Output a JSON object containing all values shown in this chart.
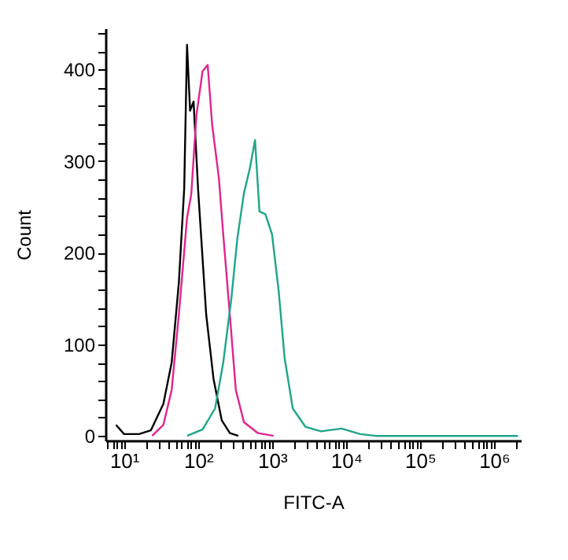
{
  "chart_data": {
    "type": "line",
    "xlabel": "FITC-A",
    "ylabel": "Count",
    "log": "x",
    "grid": false,
    "legend": false,
    "marker": "none",
    "line_style": "solid",
    "xlim": [
      5.6,
      2300000
    ],
    "ylim": [
      -5,
      445
    ],
    "xticks": [
      {
        "value": 10,
        "label": "10¹"
      },
      {
        "value": 100,
        "label": "10²"
      },
      {
        "value": 1000,
        "label": "10³"
      },
      {
        "value": 10000,
        "label": "10⁴"
      },
      {
        "value": 100000,
        "label": "10⁵"
      },
      {
        "value": 1000000,
        "label": "10⁶"
      },
      {
        "value": 6,
        "label": null
      },
      {
        "value": 7,
        "label": null
      },
      {
        "value": 8,
        "label": null
      },
      {
        "value": 9,
        "label": null
      },
      {
        "value": 20,
        "label": null
      },
      {
        "value": 30,
        "label": null
      },
      {
        "value": 40,
        "label": null
      },
      {
        "value": 50,
        "label": null
      },
      {
        "value": 60,
        "label": null
      },
      {
        "value": 70,
        "label": null
      },
      {
        "value": 80,
        "label": null
      },
      {
        "value": 90,
        "label": null
      },
      {
        "value": 200,
        "label": null
      },
      {
        "value": 300,
        "label": null
      },
      {
        "value": 400,
        "label": null
      },
      {
        "value": 500,
        "label": null
      },
      {
        "value": 600,
        "label": null
      },
      {
        "value": 700,
        "label": null
      },
      {
        "value": 800,
        "label": null
      },
      {
        "value": 900,
        "label": null
      },
      {
        "value": 2000,
        "label": null
      },
      {
        "value": 3000,
        "label": null
      },
      {
        "value": 4000,
        "label": null
      },
      {
        "value": 5000,
        "label": null
      },
      {
        "value": 6000,
        "label": null
      },
      {
        "value": 7000,
        "label": null
      },
      {
        "value": 8000,
        "label": null
      },
      {
        "value": 9000,
        "label": null
      },
      {
        "value": 20000,
        "label": null
      },
      {
        "value": 30000,
        "label": null
      },
      {
        "value": 40000,
        "label": null
      },
      {
        "value": 50000,
        "label": null
      },
      {
        "value": 60000,
        "label": null
      },
      {
        "value": 70000,
        "label": null
      },
      {
        "value": 80000,
        "label": null
      },
      {
        "value": 90000,
        "label": null
      },
      {
        "value": 200000,
        "label": null
      },
      {
        "value": 300000,
        "label": null
      },
      {
        "value": 400000,
        "label": null
      },
      {
        "value": 500000,
        "label": null
      },
      {
        "value": 600000,
        "label": null
      },
      {
        "value": 700000,
        "label": null
      },
      {
        "value": 800000,
        "label": null
      },
      {
        "value": 900000,
        "label": null
      },
      {
        "value": 2000000,
        "label": null
      }
    ],
    "yticks": [
      0,
      100,
      200,
      300,
      400,
      {
        "value": 20,
        "label": null
      },
      {
        "value": 40,
        "label": null
      },
      {
        "value": 60,
        "label": null
      },
      {
        "value": 80,
        "label": null
      },
      {
        "value": 120,
        "label": null
      },
      {
        "value": 140,
        "label": null
      },
      {
        "value": 160,
        "label": null
      },
      {
        "value": 180,
        "label": null
      },
      {
        "value": 220,
        "label": null
      },
      {
        "value": 240,
        "label": null
      },
      {
        "value": 260,
        "label": null
      },
      {
        "value": 280,
        "label": null
      },
      {
        "value": 320,
        "label": null
      },
      {
        "value": 340,
        "label": null
      },
      {
        "value": 360,
        "label": null
      },
      {
        "value": 380,
        "label": null
      },
      {
        "value": 420,
        "label": null
      },
      {
        "value": 440,
        "label": null
      }
    ],
    "series": [
      {
        "color": "#000000",
        "x": [
          7.8,
          10,
          16,
          23,
          34,
          44,
          55,
          65,
          71,
          78,
          87,
          100,
          129,
          162,
          209,
          269,
          350
        ],
        "values": [
          12,
          2,
          2,
          6,
          35,
          80,
          167,
          270,
          427,
          355,
          365,
          270,
          132,
          62,
          17,
          3,
          0
        ]
      },
      {
        "color": "#e0248f",
        "x": [
          24,
          34,
          44,
          55,
          71,
          81,
          95,
          115,
          135,
          155,
          191,
          219,
          269,
          324,
          417,
          646,
          1047
        ],
        "values": [
          0,
          12,
          50,
          132,
          238,
          264,
          350,
          398,
          405,
          340,
          282,
          220,
          132,
          50,
          15,
          3,
          0
        ]
      },
      {
        "color": "#1fa58a",
        "x": [
          71,
          115,
          170,
          219,
          282,
          339,
          417,
          501,
          589,
          676,
          813,
          1000,
          1230,
          1479,
          1905,
          2818,
          4571,
          8710,
          15490,
          25120,
          2100000
        ],
        "values": [
          0,
          7,
          30,
          80,
          150,
          215,
          265,
          292,
          323,
          245,
          242,
          220,
          158,
          85,
          30,
          10,
          5,
          8,
          2,
          0,
          0
        ]
      }
    ]
  }
}
